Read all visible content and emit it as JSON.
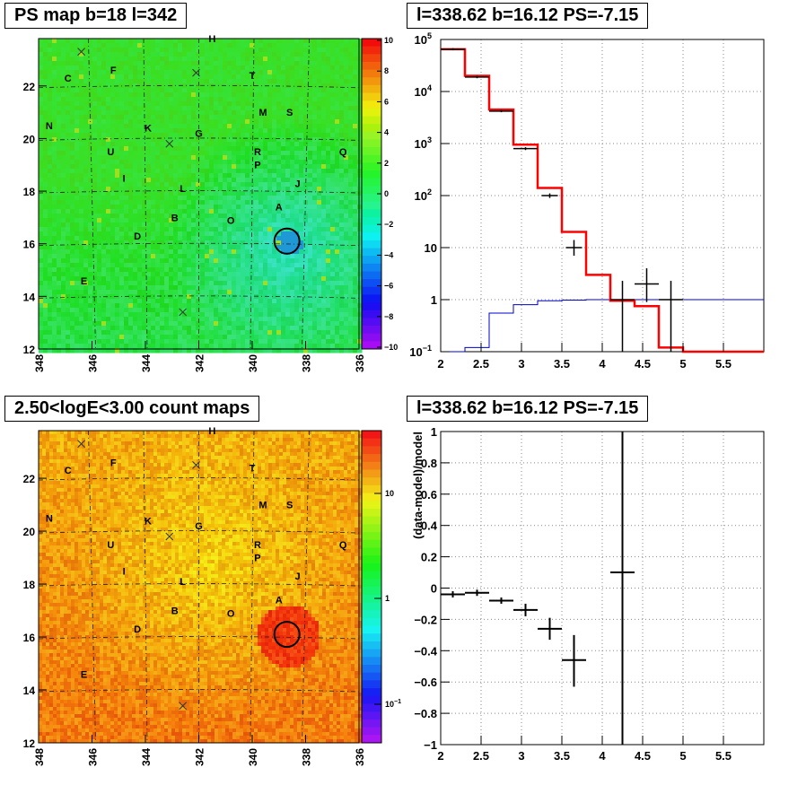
{
  "panels": {
    "ps_map": {
      "title": "PS map b=18 l=342",
      "x_ticks": [
        "348",
        "346",
        "344",
        "342",
        "340",
        "338",
        "336"
      ],
      "y_ticks": [
        "12",
        "14",
        "16",
        "18",
        "20",
        "22"
      ],
      "colorbar_ticks": [
        "10",
        "8",
        "6",
        "4",
        "2",
        "0",
        "−2",
        "−4",
        "−6",
        "−8",
        "−10"
      ]
    },
    "spectrum": {
      "title": "l=338.62 b=16.12 PS=-7.15",
      "x_ticks": [
        "2",
        "2.5",
        "3",
        "3.5",
        "4",
        "4.5",
        "5",
        "5.5"
      ],
      "y_ticks": [
        {
          "m": "10",
          "e": "−1"
        },
        {
          "m": "1",
          "e": ""
        },
        {
          "m": "10",
          "e": ""
        },
        {
          "m": "10",
          "e": "2"
        },
        {
          "m": "10",
          "e": "3"
        },
        {
          "m": "10",
          "e": "4"
        },
        {
          "m": "10",
          "e": "5"
        }
      ]
    },
    "count_map": {
      "title": "2.50<logE<3.00 count maps",
      "x_ticks": [
        "348",
        "346",
        "344",
        "342",
        "340",
        "338",
        "336"
      ],
      "y_ticks": [
        "12",
        "14",
        "16",
        "18",
        "20",
        "22"
      ],
      "colorbar_ticks": [
        {
          "m": "10",
          "e": ""
        },
        {
          "m": "1",
          "e": ""
        },
        {
          "m": "10",
          "e": "−1"
        }
      ]
    },
    "residual": {
      "title": "l=338.62 b=16.12 PS=-7.15",
      "ylabel": "(data-model)/model",
      "x_ticks": [
        "2",
        "2.5",
        "3",
        "3.5",
        "4",
        "4.5",
        "5",
        "5.5"
      ],
      "y_ticks": [
        "−1",
        "−0.8",
        "−0.6",
        "−0.4",
        "−0.2",
        "0",
        "0.2",
        "0.4",
        "0.6",
        "0.8",
        "1"
      ]
    }
  },
  "source_labels": [
    {
      "t": "C",
      "l": 346.9,
      "b": 22.3
    },
    {
      "t": "F",
      "l": 345.2,
      "b": 22.6
    },
    {
      "t": "H",
      "l": 341.5,
      "b": 23.8
    },
    {
      "t": "T",
      "l": 340.0,
      "b": 22.4
    },
    {
      "t": "M",
      "l": 339.6,
      "b": 21.0
    },
    {
      "t": "S",
      "l": 338.6,
      "b": 21.0
    },
    {
      "t": "N",
      "l": 347.6,
      "b": 20.5
    },
    {
      "t": "K",
      "l": 343.9,
      "b": 20.4
    },
    {
      "t": "G",
      "l": 342.0,
      "b": 20.2
    },
    {
      "t": "U",
      "l": 345.3,
      "b": 19.5
    },
    {
      "t": "R",
      "l": 339.8,
      "b": 19.5
    },
    {
      "t": "P",
      "l": 339.8,
      "b": 19.0
    },
    {
      "t": "Q",
      "l": 336.6,
      "b": 19.5
    },
    {
      "t": "I",
      "l": 344.8,
      "b": 18.5
    },
    {
      "t": "J",
      "l": 338.3,
      "b": 18.3
    },
    {
      "t": "L",
      "l": 342.6,
      "b": 18.1
    },
    {
      "t": "A",
      "l": 339.0,
      "b": 17.4
    },
    {
      "t": "B",
      "l": 342.9,
      "b": 17.0
    },
    {
      "t": "O",
      "l": 340.8,
      "b": 16.9
    },
    {
      "t": "D",
      "l": 344.3,
      "b": 16.3
    },
    {
      "t": "E",
      "l": 346.3,
      "b": 14.6
    }
  ],
  "cross_markers": [
    {
      "l": 346.4,
      "b": 23.3
    },
    {
      "l": 342.1,
      "b": 22.5
    },
    {
      "l": 343.1,
      "b": 19.8
    },
    {
      "l": 342.6,
      "b": 13.4
    }
  ],
  "circle_marker": {
    "l": 338.7,
    "b": 16.1
  },
  "chart_data": [
    {
      "type": "heatmap",
      "title": "PS map b=18 l=342",
      "x_range": [
        348,
        336
      ],
      "y_range": [
        12,
        23.8
      ],
      "colorbar_range": [
        -10,
        10
      ],
      "note_markers": "labels A-U, crosses, circle at l=338.62 b=16.12"
    },
    {
      "type": "line",
      "title": "l=338.62 b=16.12 PS=-7.15",
      "yscale": "log",
      "xlim": [
        2,
        6
      ],
      "ylim": [
        0.1,
        100000
      ],
      "grid": true,
      "series": [
        {
          "x": [
            2.0,
            2.3,
            2.6,
            2.9,
            3.2,
            3.5,
            3.8,
            4.1,
            4.4,
            4.7,
            5.0,
            6.0
          ],
          "values": [
            65000,
            20000,
            4500,
            950,
            140,
            20,
            3.0,
            0.95,
            0.75,
            0.12,
            0.1,
            0.1
          ]
        },
        {
          "x": [
            2.0,
            2.3,
            2.6,
            2.9,
            3.2,
            3.5,
            3.8,
            4.1,
            4.4,
            4.7,
            5.0,
            6.0
          ],
          "values": [
            0.1,
            0.12,
            0.55,
            0.8,
            0.95,
            0.98,
            1.0,
            1.0,
            1.0,
            1.0,
            1.0,
            1.0
          ]
        },
        {
          "points": [
            {
              "x": 2.15,
              "xe": 0.15,
              "y": 65000,
              "ylo": 62000,
              "yhi": 68000
            },
            {
              "x": 2.45,
              "xe": 0.15,
              "y": 19000,
              "ylo": 18000,
              "yhi": 20000
            },
            {
              "x": 2.75,
              "xe": 0.15,
              "y": 4200,
              "ylo": 4000,
              "yhi": 4400
            },
            {
              "x": 3.05,
              "xe": 0.15,
              "y": 800,
              "ylo": 750,
              "yhi": 850
            },
            {
              "x": 3.35,
              "xe": 0.1,
              "y": 100,
              "ylo": 90,
              "yhi": 110
            },
            {
              "x": 3.65,
              "xe": 0.1,
              "y": 10,
              "ylo": 7,
              "yhi": 14
            },
            {
              "x": 4.25,
              "xe": 0.15,
              "y": 1,
              "ylo": 0.1,
              "yhi": 2.3
            },
            {
              "x": 4.55,
              "xe": 0.15,
              "y": 2,
              "ylo": 0.9,
              "yhi": 4
            },
            {
              "x": 4.85,
              "xe": 0.15,
              "y": 1,
              "ylo": 0.1,
              "yhi": 2.3
            }
          ]
        }
      ]
    },
    {
      "type": "heatmap",
      "title": "2.50<logE<3.00 count maps",
      "x_range": [
        348,
        336
      ],
      "y_range": [
        12,
        23.8
      ],
      "colorbar_scale": "log"
    },
    {
      "type": "scatter",
      "title": "l=338.62 b=16.12 PS=-7.15",
      "ylabel": "(data-model)/model",
      "xlim": [
        2,
        6
      ],
      "ylim": [
        -1,
        1
      ],
      "grid": true,
      "points": [
        {
          "x": 2.15,
          "xe": 0.15,
          "y": -0.04,
          "ylo": -0.06,
          "yhi": -0.02
        },
        {
          "x": 2.45,
          "xe": 0.15,
          "y": -0.03,
          "ylo": -0.05,
          "yhi": -0.01
        },
        {
          "x": 2.75,
          "xe": 0.15,
          "y": -0.08,
          "ylo": -0.1,
          "yhi": -0.06
        },
        {
          "x": 3.05,
          "xe": 0.15,
          "y": -0.14,
          "ylo": -0.18,
          "yhi": -0.1
        },
        {
          "x": 3.35,
          "xe": 0.15,
          "y": -0.26,
          "ylo": -0.33,
          "yhi": -0.19
        },
        {
          "x": 3.65,
          "xe": 0.15,
          "y": -0.46,
          "ylo": -0.63,
          "yhi": -0.3
        },
        {
          "x": 4.25,
          "xe": 0.0,
          "y": 0.1,
          "ylo": -1.0,
          "yhi": 1.0
        }
      ]
    }
  ]
}
